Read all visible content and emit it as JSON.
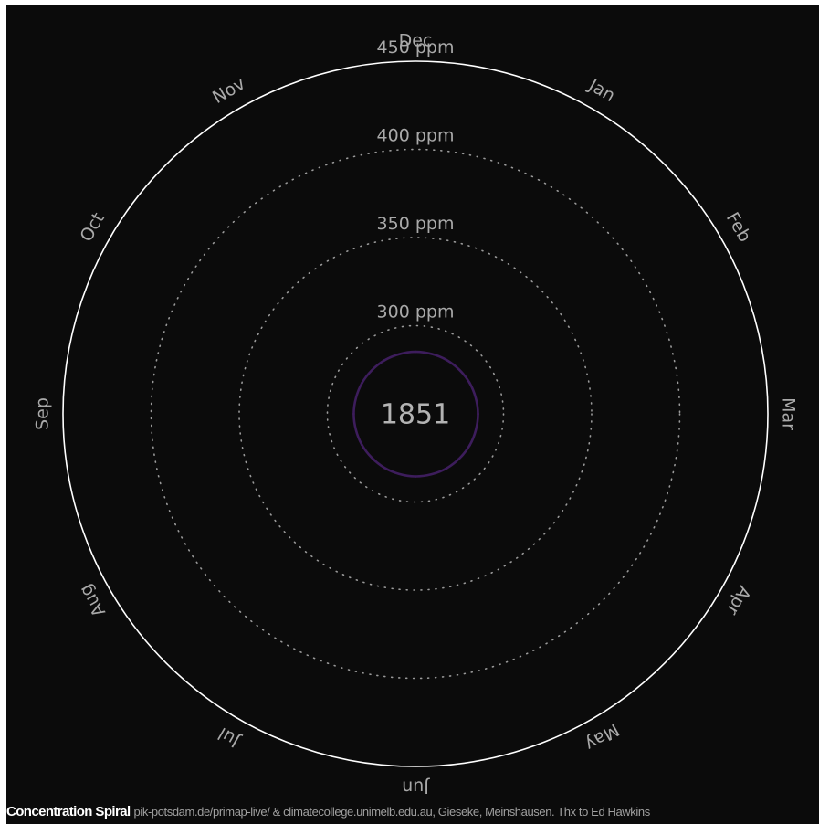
{
  "chart_data": {
    "type": "polar-line",
    "title": "Concentration Spiral",
    "credit": "pik-potsdam.de/primap-live/ & climatecollege.unimelb.edu.au, Gieseke, Meinshausen. Thx to Ed Hawkins",
    "year": "1851",
    "radial_axis": {
      "unit": "ppm",
      "range": [
        250,
        450
      ],
      "gridlines": [
        {
          "value": 300,
          "label": "300 ppm",
          "style": "dotted"
        },
        {
          "value": 350,
          "label": "350 ppm",
          "style": "dotted"
        },
        {
          "value": 400,
          "label": "400 ppm",
          "style": "dotted"
        },
        {
          "value": 450,
          "label": "450 ppm",
          "style": "solid"
        }
      ]
    },
    "months": [
      "Jan",
      "Feb",
      "Mar",
      "Apr",
      "May",
      "Jun",
      "Jul",
      "Aug",
      "Sep",
      "Oct",
      "Nov",
      "Dec"
    ],
    "series": [
      {
        "values": [
          285.3,
          285.4,
          285.5,
          285.6,
          285.6,
          285.5,
          285.3,
          285.1,
          285.0,
          285.0,
          285.1,
          285.2
        ],
        "color": "#3d1d5c"
      }
    ],
    "colors": {
      "background": "#0b0b0b",
      "outer_ring": "#ffffff",
      "grid_dots": "#9a9a9a",
      "labels": "#a9a9a9",
      "trace": "#3d1d5c"
    }
  }
}
